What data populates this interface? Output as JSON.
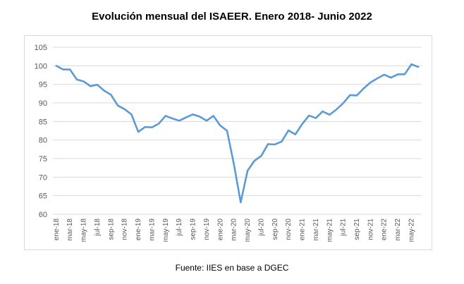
{
  "title": "Evolución mensual del ISAEER. Enero 2018- Junio 2022",
  "source": "Fuente: IIES en base a DGEC",
  "colors": {
    "line": "#5b9bd5",
    "grid": "#d9d9d9",
    "tick_text": "#595959"
  },
  "chart_data": {
    "type": "line",
    "title": "Evolución mensual del ISAEER. Enero 2018- Junio 2022",
    "xlabel": "",
    "ylabel": "",
    "ylim": [
      60,
      105
    ],
    "yticks": [
      60,
      65,
      70,
      75,
      80,
      85,
      90,
      95,
      100,
      105
    ],
    "grid": true,
    "legend": "none",
    "x": [
      "ene-18",
      "feb-18",
      "mar-18",
      "abr-18",
      "may-18",
      "jun-18",
      "jul-18",
      "ago-18",
      "sep-18",
      "oct-18",
      "nov-18",
      "dic-18",
      "ene-19",
      "feb-19",
      "mar-19",
      "abr-19",
      "may-19",
      "jun-19",
      "jul-19",
      "ago-19",
      "sep-19",
      "oct-19",
      "nov-19",
      "dic-19",
      "ene-20",
      "feb-20",
      "mar-20",
      "abr-20",
      "may-20",
      "jun-20",
      "jul-20",
      "ago-20",
      "sep-20",
      "oct-20",
      "nov-20",
      "dic-20",
      "ene-21",
      "feb-21",
      "mar-21",
      "abr-21",
      "may-21",
      "jun-21",
      "jul-21",
      "ago-21",
      "sep-21",
      "oct-21",
      "nov-21",
      "dic-21",
      "ene-22",
      "feb-22",
      "mar-22",
      "abr-22",
      "may-22",
      "jun-22"
    ],
    "xtick_labels": [
      "ene-18",
      "mar-18",
      "may-18",
      "jul-18",
      "sep-18",
      "nov-18",
      "ene-19",
      "mar-19",
      "may-19",
      "jul-19",
      "sep-19",
      "nov-19",
      "ene-20",
      "mar-20",
      "may-20",
      "jul-20",
      "sep-20",
      "nov-20",
      "ene-21",
      "mar-21",
      "may-21",
      "jul-21",
      "sep-21",
      "nov-21",
      "ene-22",
      "mar-22",
      "may-22"
    ],
    "series": [
      {
        "values": [
          100.0,
          99.0,
          99.0,
          96.3,
          95.8,
          94.5,
          94.9,
          93.3,
          92.2,
          89.3,
          88.3,
          86.9,
          82.2,
          83.5,
          83.4,
          84.4,
          86.5,
          85.8,
          85.2,
          86.1,
          86.9,
          86.3,
          85.2,
          86.5,
          83.9,
          82.5,
          73.5,
          63.2,
          71.7,
          74.4,
          75.7,
          78.9,
          78.8,
          79.6,
          82.6,
          81.5,
          84.3,
          86.6,
          85.9,
          87.7,
          86.8,
          88.2,
          89.9,
          92.1,
          92.0,
          93.9,
          95.5,
          96.6,
          97.6,
          96.8,
          97.7,
          97.7,
          100.4,
          99.7
        ]
      }
    ]
  }
}
